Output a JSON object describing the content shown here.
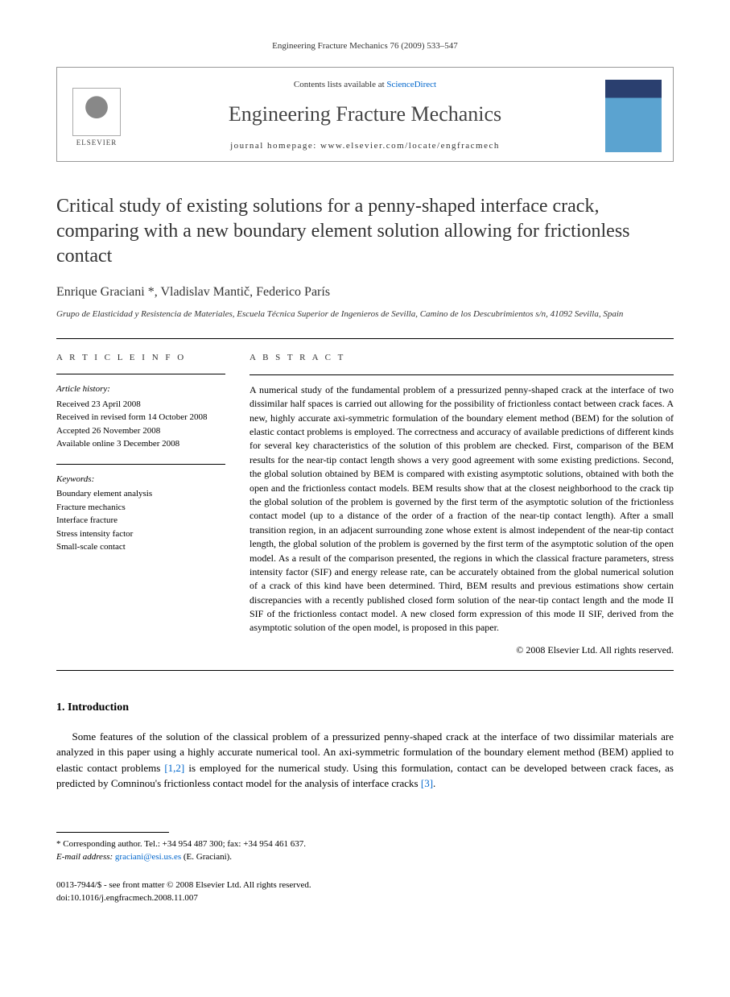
{
  "header": {
    "citation": "Engineering Fracture Mechanics 76 (2009) 533–547"
  },
  "journalBox": {
    "elsevierLabel": "ELSEVIER",
    "contentsPrefix": "Contents lists available at ",
    "contentsLink": "ScienceDirect",
    "journalName": "Engineering Fracture Mechanics",
    "homepageLabel": "journal homepage: www.elsevier.com/locate/engfracmech"
  },
  "article": {
    "title": "Critical study of existing solutions for a penny-shaped interface crack, comparing with a new boundary element solution allowing for frictionless contact",
    "authors": "Enrique Graciani *, Vladislav Mantič, Federico París",
    "affiliation": "Grupo de Elasticidad y Resistencia de Materiales, Escuela Técnica Superior de Ingenieros de Sevilla, Camino de los Descubrimientos s/n, 41092 Sevilla, Spain"
  },
  "info": {
    "heading": "A R T I C L E   I N F O",
    "historyLabel": "Article history:",
    "history": [
      "Received 23 April 2008",
      "Received in revised form 14 October 2008",
      "Accepted 26 November 2008",
      "Available online 3 December 2008"
    ],
    "keywordsLabel": "Keywords:",
    "keywords": [
      "Boundary element analysis",
      "Fracture mechanics",
      "Interface fracture",
      "Stress intensity factor",
      "Small-scale contact"
    ]
  },
  "abstract": {
    "heading": "A B S T R A C T",
    "text": "A numerical study of the fundamental problem of a pressurized penny-shaped crack at the interface of two dissimilar half spaces is carried out allowing for the possibility of frictionless contact between crack faces. A new, highly accurate axi-symmetric formulation of the boundary element method (BEM) for the solution of elastic contact problems is employed. The correctness and accuracy of available predictions of different kinds for several key characteristics of the solution of this problem are checked. First, comparison of the BEM results for the near-tip contact length shows a very good agreement with some existing predictions. Second, the global solution obtained by BEM is compared with existing asymptotic solutions, obtained with both the open and the frictionless contact models. BEM results show that at the closest neighborhood to the crack tip the global solution of the problem is governed by the first term of the asymptotic solution of the frictionless contact model (up to a distance of the order of a fraction of the near-tip contact length). After a small transition region, in an adjacent surrounding zone whose extent is almost independent of the near-tip contact length, the global solution of the problem is governed by the first term of the asymptotic solution of the open model. As a result of the comparison presented, the regions in which the classical fracture parameters, stress intensity factor (SIF) and energy release rate, can be accurately obtained from the global numerical solution of a crack of this kind have been determined. Third, BEM results and previous estimations show certain discrepancies with a recently published closed form solution of the near-tip contact length and the mode II SIF of the frictionless contact model. A new closed form expression of this mode II SIF, derived from the asymptotic solution of the open model, is proposed in this paper.",
    "copyright": "© 2008 Elsevier Ltd. All rights reserved."
  },
  "section1": {
    "heading": "1.  Introduction",
    "para1_a": "Some features of the solution of the classical problem of a pressurized penny-shaped crack at the interface of two dissimilar materials are analyzed in this paper using a highly accurate numerical tool. An axi-symmetric formulation of the boundary element method (BEM) applied to elastic contact problems ",
    "para1_ref1": "[1,2]",
    "para1_b": " is employed for the numerical study. Using this formulation, contact can be developed between crack faces, as predicted by Comninou's frictionless contact model for the analysis of interface cracks ",
    "para1_ref2": "[3]",
    "para1_c": "."
  },
  "footer": {
    "correspondingLabel": "* Corresponding author. Tel.: +34 954 487 300; fax: +34 954 461 637.",
    "emailLabel": "E-mail address:",
    "email": "graciani@esi.us.es",
    "emailSuffix": " (E. Graciani).",
    "issn": "0013-7944/$ - see front matter © 2008 Elsevier Ltd. All rights reserved.",
    "doi": "doi:10.1016/j.engfracmech.2008.11.007"
  }
}
